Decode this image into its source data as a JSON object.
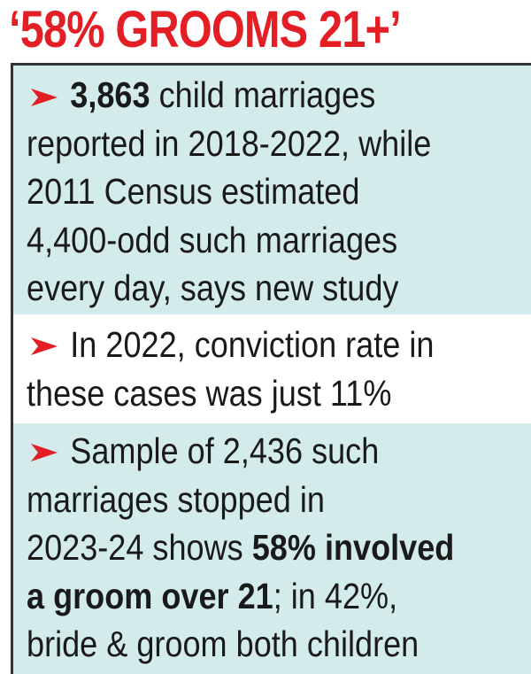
{
  "header": {
    "title": "‘58% GROOMS 21+’"
  },
  "items": [
    {
      "lines": [
        [
          {
            "text": "3,863",
            "bold": true
          },
          {
            "text": " child marriages"
          }
        ],
        [
          {
            "text": "reported in 2018-2022, while"
          }
        ],
        [
          {
            "text": "2011 Census estimated"
          }
        ],
        [
          {
            "text": "4,400-odd such marriages"
          }
        ],
        [
          {
            "text": "every day, says new study"
          }
        ]
      ]
    },
    {
      "lines": [
        [
          {
            "text": "In 2022, conviction rate in"
          }
        ],
        [
          {
            "text": "these cases was just 11%"
          }
        ]
      ]
    },
    {
      "lines": [
        [
          {
            "text": "Sample of 2,436 such"
          }
        ],
        [
          {
            "text": "marriages stopped in"
          }
        ],
        [
          {
            "text": "2023-24 shows "
          },
          {
            "text": "58% involved",
            "bold": true
          }
        ],
        [
          {
            "text": "a groom over 21",
            "bold": true
          },
          {
            "text": "; in 42%,"
          }
        ],
        [
          {
            "text": "bride & groom both children"
          }
        ]
      ]
    }
  ]
}
